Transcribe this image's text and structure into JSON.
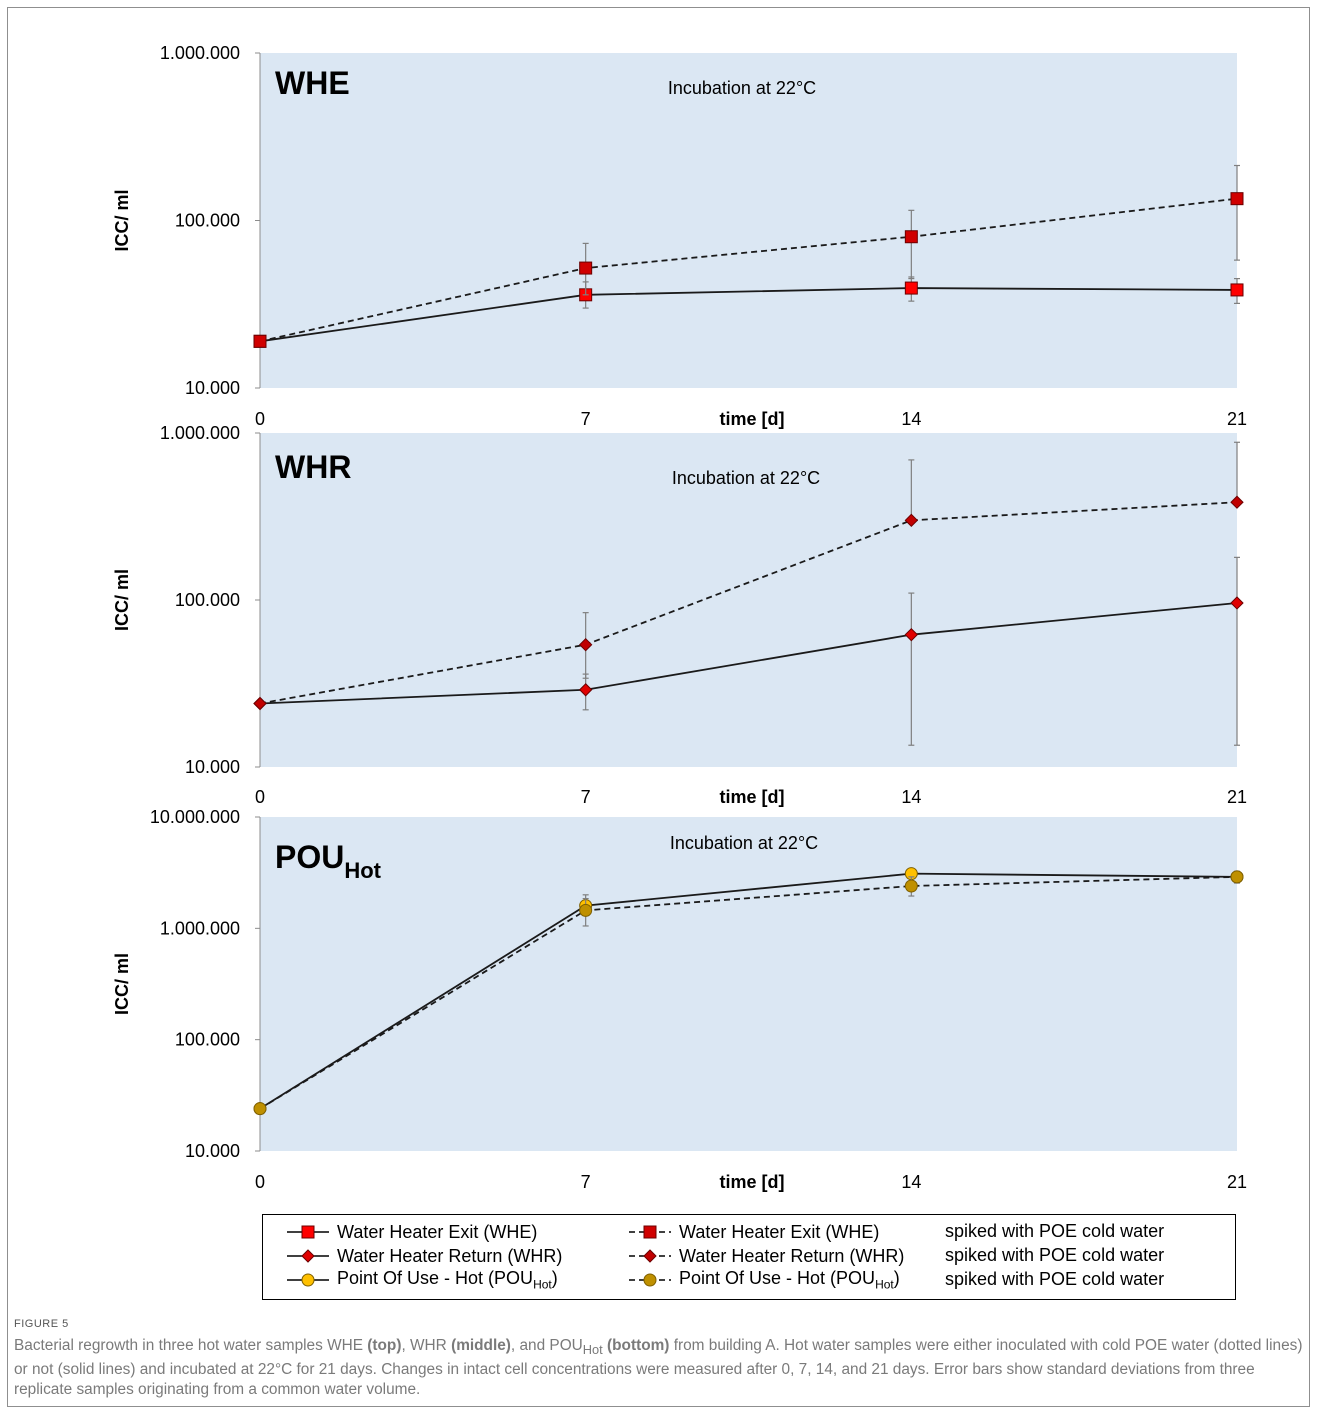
{
  "figure": {
    "label": "FIGURE 5",
    "caption": {
      "p1": "Bacterial regrowth in three hot water samples WHE ",
      "b1": "(top)",
      "p2": ", WHR ",
      "b2": "(middle)",
      "p3": ", and POU",
      "p3sub": "Hot",
      "p3b": " ",
      "b3": "(bottom)",
      "p4": " from building A. Hot water samples were either inoculated with cold POE water (dotted lines) or not (solid lines) and incubated at 22°C for 21 days. Changes in intact cell concentrations were measured after 0, 7, 14, and 21 days. Error bars show standard deviations from three replicate samples originating from a common water volume."
    }
  },
  "colors": {
    "plot_bg": "#dbe7f3",
    "line": "#1a1a1a",
    "errorbar": "#7f7f7f",
    "whe_marker": "#ff0000",
    "whe_spiked_marker": "#d00000",
    "whr_marker": "#e00000",
    "whr_spiked_marker": "#c00000",
    "pou_marker": "#ffc000",
    "pou_spiked_marker": "#bf9000"
  },
  "legend": {
    "items": [
      {
        "label": "Water Heater Exit (WHE)",
        "sub": "",
        "tail": "",
        "marker": "square",
        "color": "#ff0000",
        "dashed": false
      },
      {
        "label": "Water Heater Exit (WHE)",
        "sub": "",
        "tail": "",
        "marker": "square",
        "color": "#d00000",
        "dashed": true,
        "suffix": "spiked with POE cold water"
      },
      {
        "label": "Water Heater Return (WHR)",
        "sub": "",
        "tail": "",
        "marker": "diamond",
        "color": "#e00000",
        "dashed": false
      },
      {
        "label": "Water Heater Return (WHR)",
        "sub": "",
        "tail": "",
        "marker": "diamond",
        "color": "#c00000",
        "dashed": true,
        "suffix": "spiked with POE cold water"
      },
      {
        "label": "Point Of Use - Hot (POU",
        "sub": "Hot",
        "tail": ")",
        "marker": "circle",
        "color": "#ffc000",
        "dashed": false
      },
      {
        "label": "Point Of Use - Hot (POU",
        "sub": "Hot",
        "tail": ")",
        "marker": "circle",
        "color": "#bf9000",
        "dashed": true,
        "suffix": "spiked with POE cold water"
      }
    ]
  },
  "chart_data": [
    {
      "type": "line",
      "title": "WHE",
      "title_sub": "",
      "annotation": "Incubation at 22°C",
      "xlabel": "time [d]",
      "ylabel": "ICC/ ml",
      "yscale": "log",
      "ylim": [
        10000,
        1000000
      ],
      "yticks": [
        10000,
        100000,
        1000000
      ],
      "ytick_labels": [
        "10.000",
        "100.000",
        "1.000.000"
      ],
      "xlim": [
        0,
        21
      ],
      "xticks": [
        0,
        7,
        14,
        21
      ],
      "grid": false,
      "series": [
        {
          "marker": "square",
          "color": "#ff0000",
          "dashed": false,
          "x": [
            0,
            7,
            14,
            21
          ],
          "y": [
            19000,
            36000,
            39500,
            38500
          ],
          "err_low": [
            null,
            30000,
            33000,
            32000
          ],
          "err_high": [
            null,
            43000,
            46000,
            45000
          ]
        },
        {
          "marker": "square",
          "color": "#d00000",
          "dashed": true,
          "x": [
            0,
            7,
            14,
            21
          ],
          "y": [
            19000,
            52000,
            80000,
            135000
          ],
          "err_low": [
            null,
            36000,
            45000,
            58000
          ],
          "err_high": [
            null,
            73000,
            115000,
            213000
          ]
        }
      ]
    },
    {
      "type": "line",
      "title": "WHR",
      "title_sub": "",
      "annotation": "Incubation at 22°C",
      "xlabel": "time [d]",
      "ylabel": "ICC/ ml",
      "yscale": "log",
      "ylim": [
        10000,
        1000000
      ],
      "yticks": [
        10000,
        100000,
        1000000
      ],
      "ytick_labels": [
        "10.000",
        "100.000",
        "1.000.000"
      ],
      "xlim": [
        0,
        21
      ],
      "xticks": [
        0,
        7,
        14,
        21
      ],
      "grid": false,
      "series": [
        {
          "marker": "diamond",
          "color": "#e00000",
          "dashed": false,
          "x": [
            0,
            7,
            14,
            21
          ],
          "y": [
            24000,
            29000,
            62000,
            96000
          ],
          "err_low": [
            null,
            22000,
            13500,
            13500
          ],
          "err_high": [
            null,
            36000,
            110000,
            180000
          ]
        },
        {
          "marker": "diamond",
          "color": "#c00000",
          "dashed": true,
          "x": [
            0,
            7,
            14,
            21
          ],
          "y": [
            24000,
            54000,
            300000,
            385000
          ],
          "err_low": [
            null,
            34000,
            null,
            null
          ],
          "err_high": [
            null,
            84000,
            690000,
            880000
          ]
        }
      ]
    },
    {
      "type": "line",
      "title": "POU",
      "title_sub": "Hot",
      "annotation": "Incubation at 22°C",
      "xlabel": "time [d]",
      "ylabel": "ICC/ ml",
      "yscale": "log",
      "ylim": [
        10000,
        10000000
      ],
      "yticks": [
        10000,
        100000,
        1000000,
        10000000
      ],
      "ytick_labels": [
        "10.000",
        "100.000",
        "1.000.000",
        "10.000.000"
      ],
      "xlim": [
        0,
        21
      ],
      "xticks": [
        0,
        7,
        14,
        21
      ],
      "grid": false,
      "series": [
        {
          "marker": "circle",
          "color": "#ffc000",
          "dashed": false,
          "x": [
            0,
            7,
            14,
            21
          ],
          "y": [
            24000,
            1600000,
            3100000,
            2900000
          ],
          "err_low": [
            null,
            1300000,
            null,
            null
          ],
          "err_high": [
            null,
            2000000,
            null,
            null
          ]
        },
        {
          "marker": "circle",
          "color": "#bf9000",
          "dashed": true,
          "x": [
            0,
            7,
            14,
            21
          ],
          "y": [
            24000,
            1450000,
            2400000,
            2900000
          ],
          "err_low": [
            null,
            1050000,
            1950000,
            2550000
          ],
          "err_high": [
            null,
            1850000,
            2900000,
            3250000
          ]
        }
      ]
    }
  ]
}
